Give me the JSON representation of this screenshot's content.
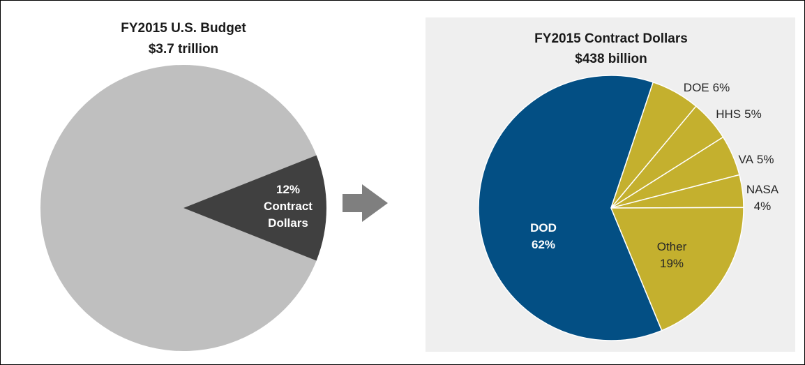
{
  "chart_data": [
    {
      "type": "pie",
      "title": "FY2015 U.S. Budget",
      "subtitle": "$3.7 trillion",
      "categories": [
        null,
        "Contract Dollars"
      ],
      "values": [
        88,
        12
      ],
      "value_labels": [
        null,
        "12%"
      ],
      "colors": [
        "#bfbfbf",
        "#404040"
      ]
    },
    {
      "type": "pie",
      "title": "FY2015 Contract Dollars",
      "subtitle": "$438 billion",
      "categories": [
        "DOD",
        "DOE",
        "HHS",
        "VA",
        "NASA",
        "Other"
      ],
      "values": [
        62,
        6,
        5,
        5,
        4,
        19
      ],
      "value_labels": [
        "62%",
        "6%",
        "5%",
        "5%",
        "4%",
        "19%"
      ],
      "colors": [
        "#034f84",
        "#c4b02e",
        "#c4b02e",
        "#c4b02e",
        "#c4b02e",
        "#c4b02e"
      ]
    }
  ]
}
